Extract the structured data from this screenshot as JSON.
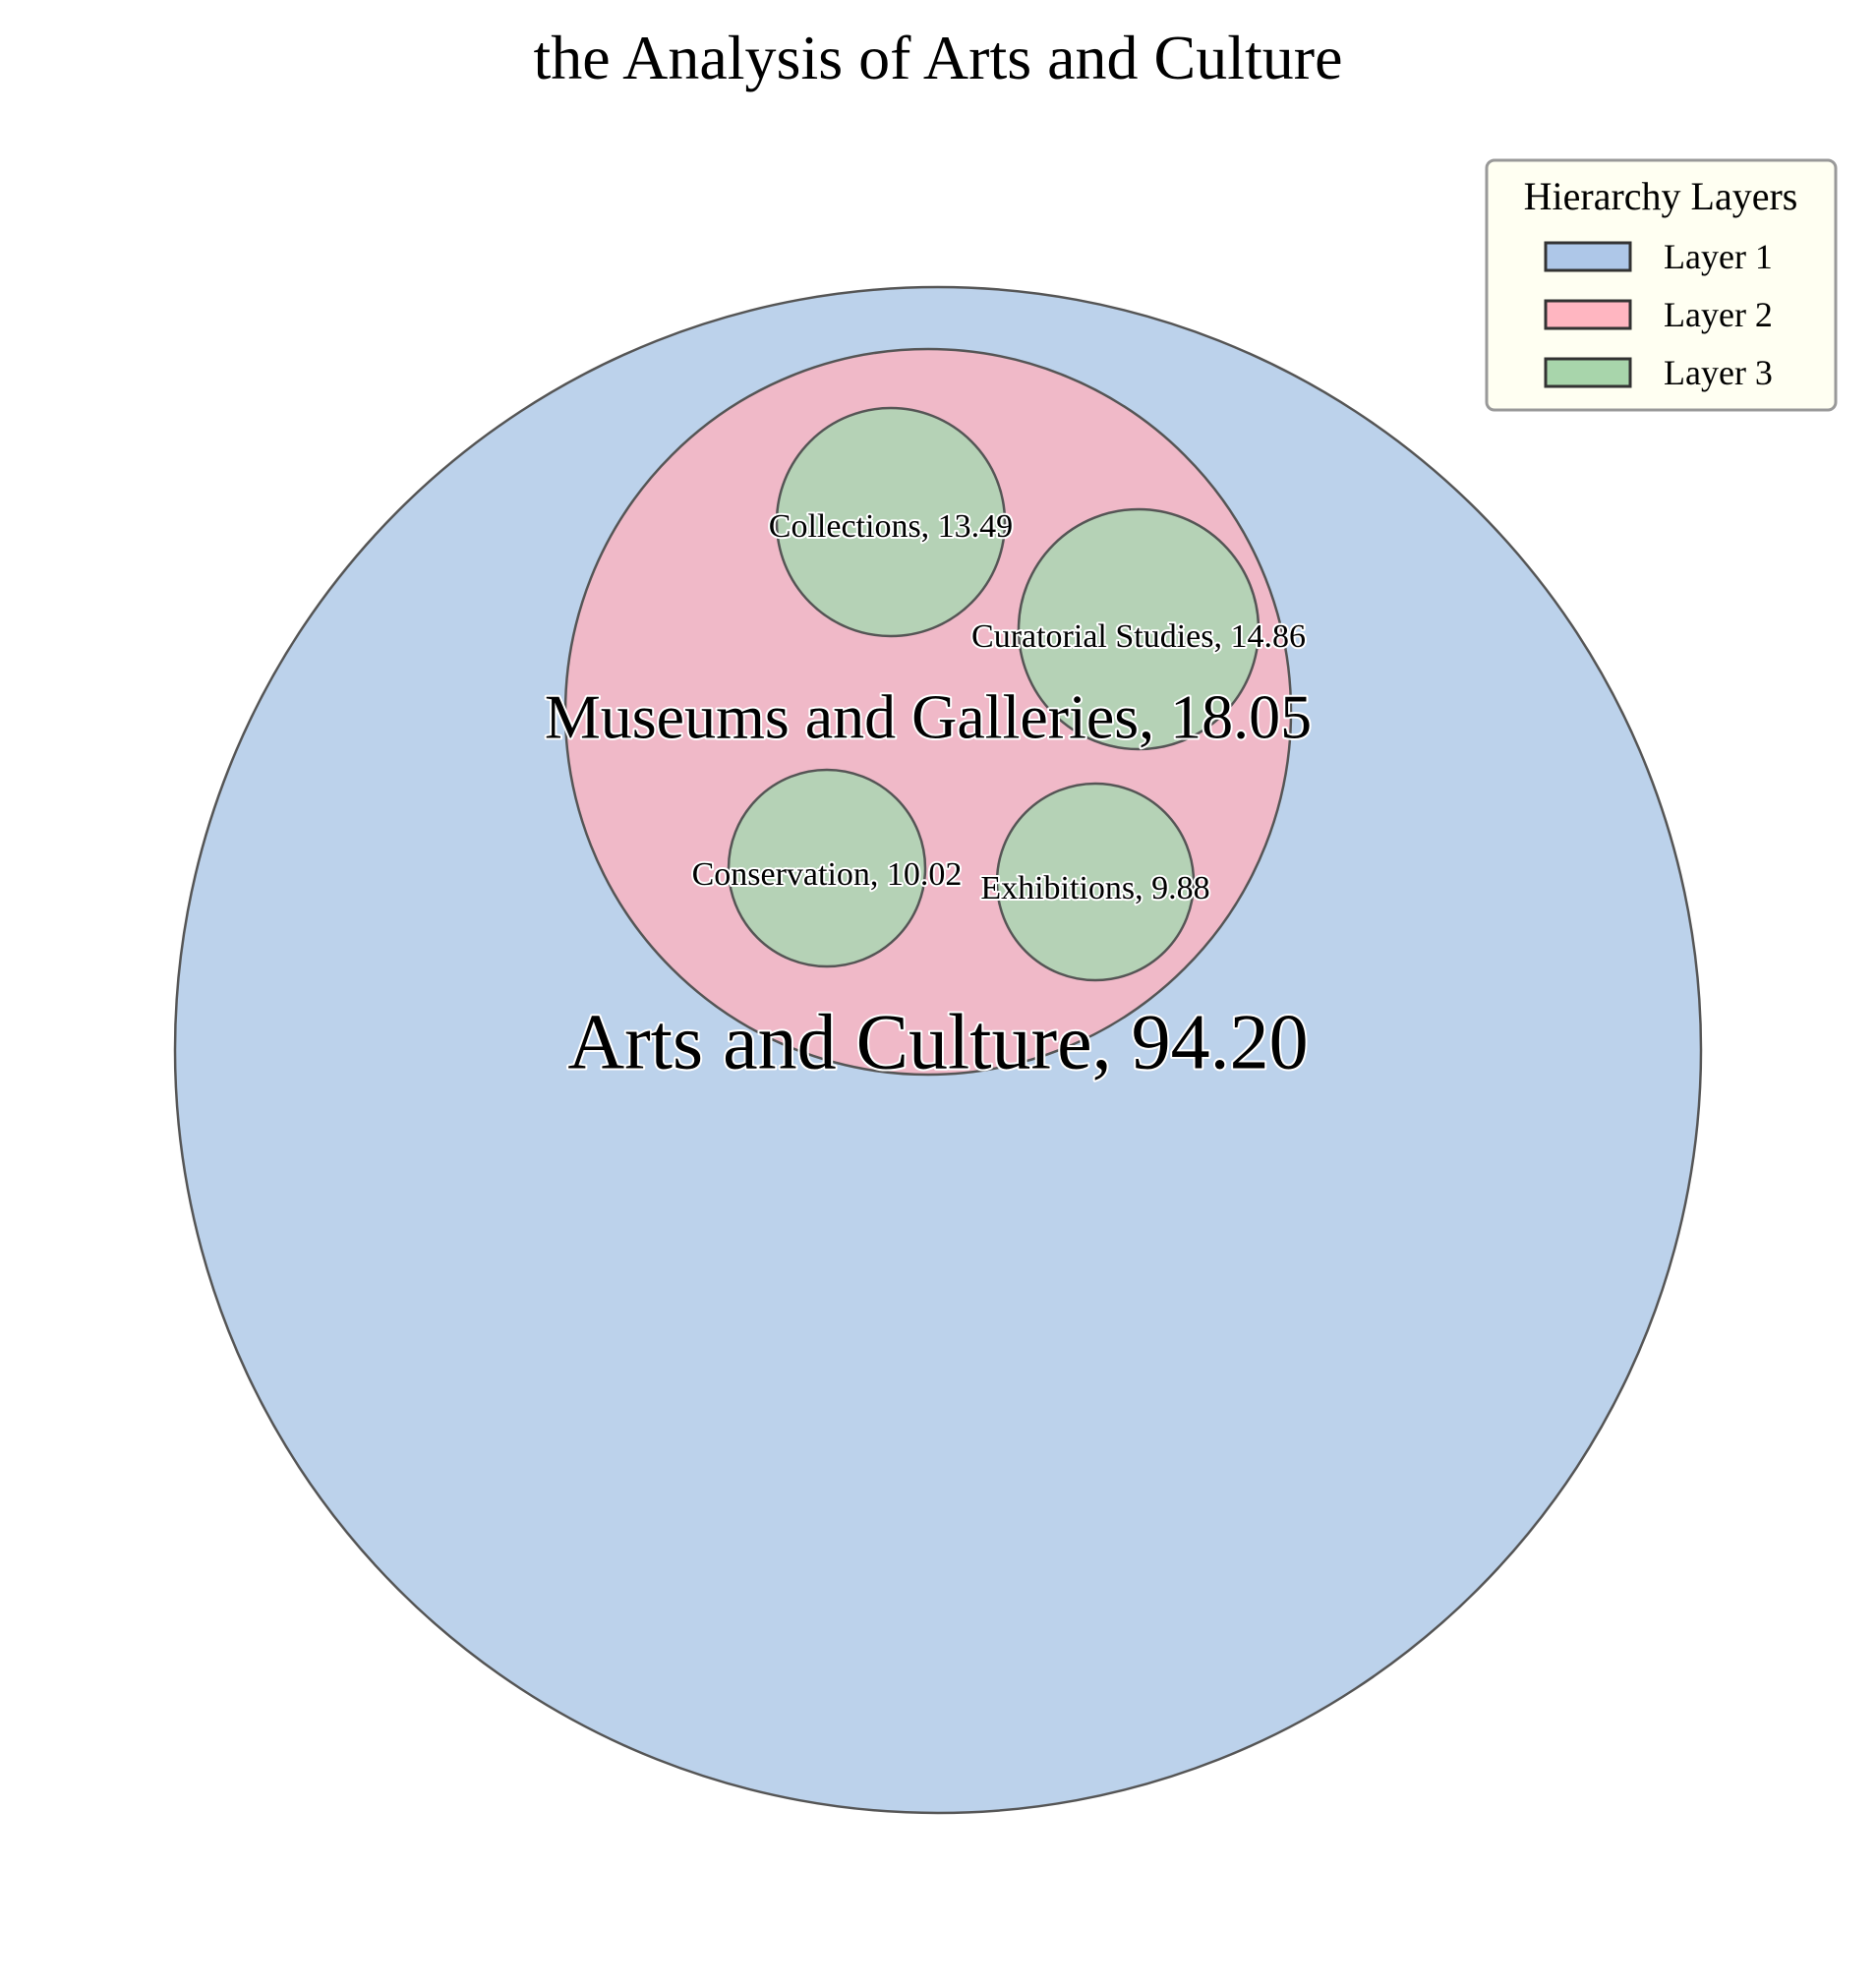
{
  "chart_data": {
    "type": "circle-packing",
    "title": "the Analysis of Arts and Culture",
    "legend": {
      "title": "Hierarchy Layers",
      "placement": "top-right",
      "items": [
        {
          "label": "Layer 1",
          "color": "#aec7e8"
        },
        {
          "label": "Layer 2",
          "color": "#ffb6c1"
        },
        {
          "label": "Layer 3",
          "color": "#a8d5ab"
        }
      ]
    },
    "nodes": [
      {
        "label": "Arts and Culture, 94.20",
        "name": "Arts and Culture",
        "value": 94.2,
        "layer": 1,
        "parent": null
      },
      {
        "label": "Museums and Galleries, 18.05",
        "name": "Museums and Galleries",
        "value": 18.05,
        "layer": 2,
        "parent": "Arts and Culture"
      },
      {
        "label": "Collections, 13.49",
        "name": "Collections",
        "value": 13.49,
        "layer": 3,
        "parent": "Museums and Galleries"
      },
      {
        "label": "Curatorial Studies, 14.86",
        "name": "Curatorial Studies",
        "value": 14.86,
        "layer": 3,
        "parent": "Museums and Galleries"
      },
      {
        "label": "Conservation, 10.02",
        "name": "Conservation",
        "value": 10.02,
        "layer": 3,
        "parent": "Museums and Galleries"
      },
      {
        "label": "Exhibitions, 9.88",
        "name": "Exhibitions",
        "value": 9.88,
        "layer": 3,
        "parent": "Museums and Galleries"
      }
    ],
    "fill_colors": {
      "1": "#bcd2eb",
      "2": "#f0b9c8",
      "3": "#b5d2b6"
    },
    "edge_color": "#555555"
  }
}
